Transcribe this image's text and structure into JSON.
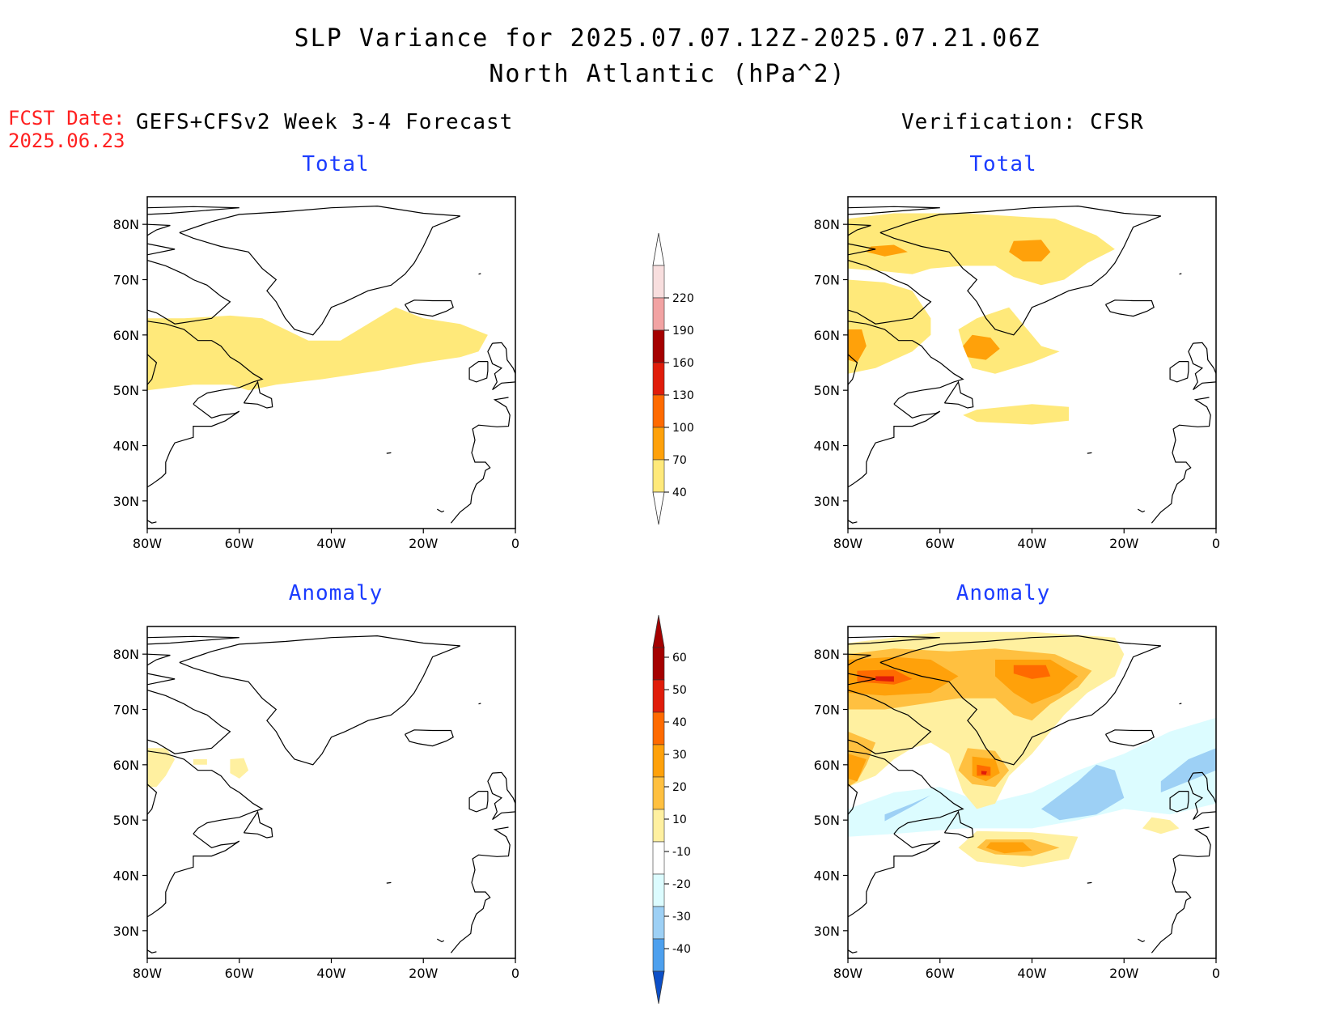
{
  "header": {
    "title_line1": "SLP Variance for 2025.07.07.12Z-2025.07.21.06Z",
    "title_line2": "North Atlantic (hPa^2)"
  },
  "fcst": {
    "label": "FCST Date:",
    "date": "2025.06.23"
  },
  "columns": {
    "left": "GEFS+CFSv2 Week 3-4 Forecast",
    "right": "Verification: CFSR"
  },
  "panels": [
    {
      "id": "fcst-total",
      "subtitle": "Total"
    },
    {
      "id": "verif-total",
      "subtitle": "Total"
    },
    {
      "id": "fcst-anomaly",
      "subtitle": "Anomaly"
    },
    {
      "id": "verif-anomaly",
      "subtitle": "Anomaly"
    }
  ],
  "axes": {
    "lat_labels": [
      "80N",
      "70N",
      "60N",
      "50N",
      "40N",
      "30N"
    ],
    "lat_values": [
      80,
      70,
      60,
      50,
      40,
      30
    ],
    "lon_labels": [
      "80W",
      "60W",
      "40W",
      "20W",
      "0"
    ],
    "lon_values": [
      -80,
      -60,
      -40,
      -20,
      0
    ],
    "lat_range": [
      25,
      85
    ],
    "lon_range": [
      -80,
      0
    ]
  },
  "colorbar_total": {
    "levels": [
      "220",
      "190",
      "160",
      "130",
      "100",
      "70",
      "40"
    ],
    "colors": [
      "#f8dede",
      "#f2a3a3",
      "#a50000",
      "#e01c0a",
      "#ff6a00",
      "#ffa10a",
      "#ffe97a"
    ]
  },
  "colorbar_anomaly": {
    "levels": [
      "60",
      "50",
      "40",
      "30",
      "20",
      "10",
      "-10",
      "-20",
      "-30",
      "-40"
    ],
    "colors": [
      "#a50000",
      "#e01c0a",
      "#ff6a00",
      "#ffa10a",
      "#ffc040",
      "#fff0a0",
      "#ffffff",
      "#dcfcff",
      "#9dd0f5",
      "#4da0ee",
      "#1e70e0",
      "#0c4fc8"
    ]
  }
}
